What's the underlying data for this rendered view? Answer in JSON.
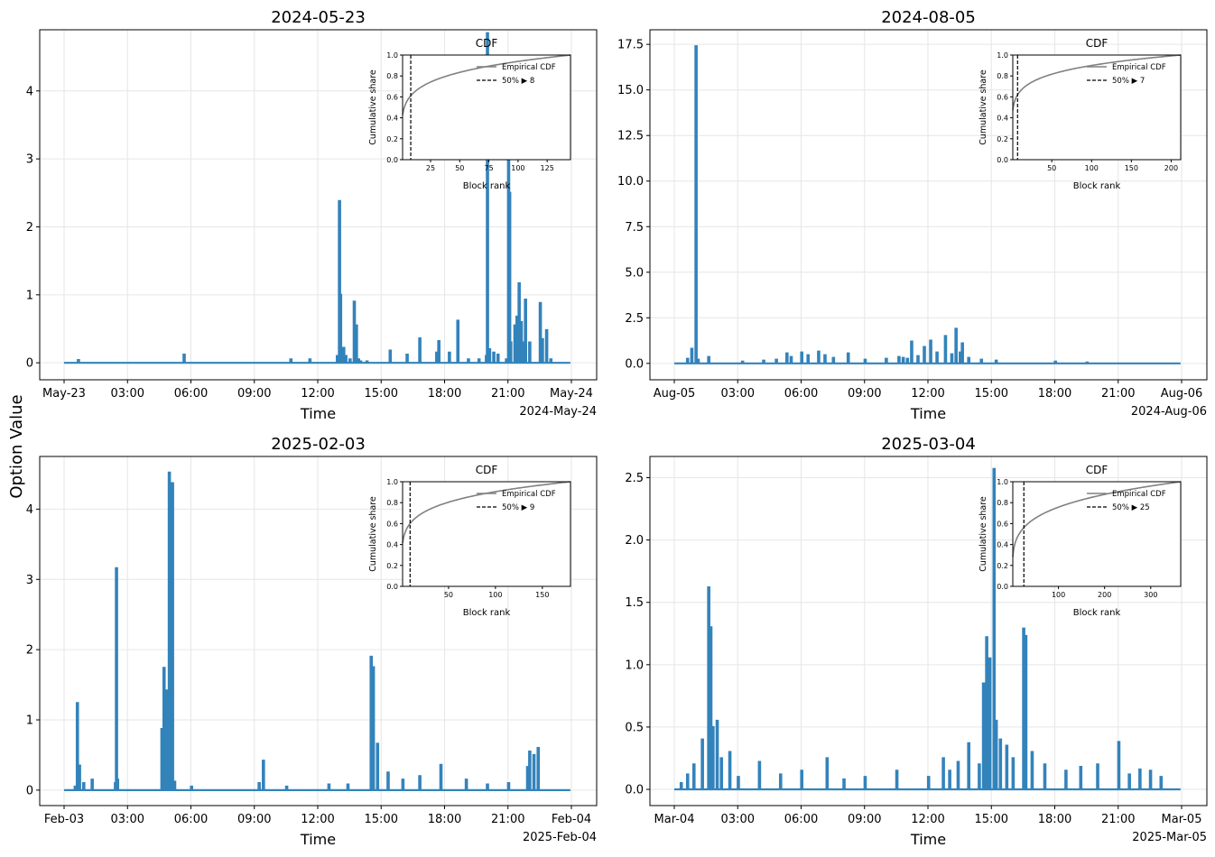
{
  "figure": {
    "ylabel": "Option Value"
  },
  "colors": {
    "series": "#3383bb",
    "cdf": "#808080",
    "grid": "#e6e6e6",
    "median": "#000000"
  },
  "chart_data": [
    {
      "type": "line",
      "title": "2024-05-23",
      "xlabel": "Time",
      "ylabel": "",
      "x_ticks": [
        "May-23",
        "03:00",
        "06:00",
        "09:00",
        "12:00",
        "15:00",
        "18:00",
        "21:00",
        "May-24"
      ],
      "x_offset_label": "2024-May-24",
      "ylim": [
        -0.25,
        4.9
      ],
      "y_ticks": [
        0,
        1,
        2,
        3,
        4
      ],
      "y_tick_labels": [
        "0",
        "1",
        "2",
        "3",
        "4"
      ],
      "grid": true,
      "series": [
        {
          "values_hours": [
            0,
            0.6,
            0.65,
            0.7,
            5.6,
            5.65,
            5.7,
            6.6,
            8.1,
            8.5,
            9.0,
            10.7,
            11.6,
            12.1,
            12.9,
            13.0,
            13.05,
            13.1,
            13.2,
            13.3,
            13.5,
            13.7,
            13.8,
            13.9,
            14.0,
            14.3,
            15.4,
            16.2,
            16.8,
            17.6,
            17.7,
            18.2,
            18.6,
            19.1,
            19.6,
            19.95,
            20.0,
            20.05,
            20.1,
            20.3,
            20.5,
            20.9,
            21.0,
            21.05,
            21.1,
            21.3,
            21.4,
            21.5,
            21.6,
            21.7,
            21.8,
            22.0,
            22.5,
            22.6,
            22.8,
            23.0,
            23.95
          ],
          "values": [
            0,
            0,
            0.04,
            0,
            0,
            0.12,
            0,
            0,
            0,
            0,
            0,
            0.05,
            0.05,
            0,
            0.1,
            2.38,
            1.0,
            0.2,
            0.22,
            0.1,
            0.05,
            0.9,
            0.55,
            0.05,
            0.02,
            0.02,
            0.18,
            0.12,
            0.36,
            0.15,
            0.32,
            0.15,
            0.62,
            0.05,
            0.05,
            0.1,
            4.85,
            0.2,
            0.2,
            0.15,
            0.12,
            0.05,
            3.2,
            2.5,
            0.3,
            0.55,
            0.68,
            1.17,
            0.6,
            0.3,
            0.93,
            0.3,
            0.88,
            0.35,
            0.48,
            0.05,
            0
          ]
        }
      ],
      "inset": {
        "title": "CDF",
        "xlabel": "Block rank",
        "ylabel": "Cumulative share",
        "xlim": [
          1,
          145
        ],
        "x_ticks": [
          25,
          50,
          75,
          100,
          125
        ],
        "y_ticks": [
          "0.0",
          "0.2",
          "0.4",
          "0.6",
          "0.8",
          "1.0"
        ],
        "n_blocks": 145,
        "cdf_exponent": 0.17,
        "median_rank": 8,
        "legend": [
          "Empirical CDF",
          "50% ▶ 8"
        ]
      }
    },
    {
      "type": "line",
      "title": "2024-08-05",
      "xlabel": "Time",
      "ylabel": "",
      "x_ticks": [
        "Aug-05",
        "03:00",
        "06:00",
        "09:00",
        "12:00",
        "15:00",
        "18:00",
        "21:00",
        "Aug-06"
      ],
      "x_offset_label": "2024-Aug-06",
      "ylim": [
        -0.9,
        18.3
      ],
      "y_ticks": [
        0,
        2.5,
        5,
        7.5,
        10,
        12.5,
        15,
        17.5
      ],
      "y_tick_labels": [
        "0.0",
        "2.5",
        "5.0",
        "7.5",
        "10.0",
        "12.5",
        "15.0",
        "17.5"
      ],
      "grid": true,
      "series": [
        {
          "values_hours": [
            0,
            0.6,
            0.8,
            1.0,
            1.05,
            1.1,
            1.6,
            3.2,
            4.2,
            4.8,
            5.3,
            5.5,
            6.0,
            6.3,
            6.8,
            7.1,
            7.5,
            8.2,
            9.0,
            10.0,
            10.6,
            10.8,
            11.0,
            11.2,
            11.5,
            11.8,
            12.1,
            12.4,
            12.8,
            13.1,
            13.3,
            13.5,
            13.6,
            13.9,
            14.5,
            15.2,
            18.0,
            19.5,
            23.95
          ],
          "values": [
            0,
            0.25,
            0.8,
            17.4,
            0.2,
            0.2,
            0.35,
            0.1,
            0.15,
            0.2,
            0.55,
            0.35,
            0.6,
            0.45,
            0.65,
            0.45,
            0.3,
            0.55,
            0.2,
            0.25,
            0.35,
            0.3,
            0.25,
            1.2,
            0.4,
            0.9,
            1.25,
            0.6,
            1.5,
            0.5,
            1.9,
            0.6,
            1.1,
            0.3,
            0.2,
            0.15,
            0.1,
            0.05,
            0
          ]
        }
      ],
      "inset": {
        "title": "CDF",
        "xlabel": "Block rank",
        "ylabel": "Cumulative share",
        "xlim": [
          1,
          212
        ],
        "x_ticks": [
          50,
          100,
          150,
          200
        ],
        "y_ticks": [
          "0.0",
          "0.2",
          "0.4",
          "0.6",
          "0.8",
          "1.0"
        ],
        "n_blocks": 212,
        "cdf_exponent": 0.14,
        "median_rank": 7,
        "legend": [
          "Empirical CDF",
          "50% ▶ 7"
        ]
      }
    },
    {
      "type": "line",
      "title": "2025-02-03",
      "xlabel": "Time",
      "ylabel": "",
      "x_ticks": [
        "Feb-03",
        "03:00",
        "06:00",
        "09:00",
        "12:00",
        "15:00",
        "18:00",
        "21:00",
        "Feb-04"
      ],
      "x_offset_label": "2025-Feb-04",
      "ylim": [
        -0.22,
        4.75
      ],
      "y_ticks": [
        0,
        1,
        2,
        3,
        4
      ],
      "y_tick_labels": [
        "0",
        "1",
        "2",
        "3",
        "4"
      ],
      "grid": true,
      "series": [
        {
          "values_hours": [
            0,
            0.5,
            0.6,
            0.7,
            0.9,
            1.3,
            2.4,
            2.45,
            2.5,
            4.6,
            4.7,
            4.85,
            4.95,
            5.0,
            5.1,
            5.2,
            6.0,
            9.2,
            9.4,
            10.5,
            12.5,
            13.4,
            14.5,
            14.6,
            14.8,
            15.3,
            16.0,
            16.8,
            17.8,
            19.0,
            20.0,
            21.0,
            21.9,
            22.0,
            22.2,
            22.4,
            23.95
          ],
          "values": [
            0,
            0.05,
            1.24,
            0.35,
            0.1,
            0.15,
            0.1,
            3.16,
            0.15,
            0.87,
            1.74,
            1.42,
            4.52,
            3.2,
            4.37,
            0.12,
            0.05,
            0.1,
            0.42,
            0.05,
            0.08,
            0.08,
            1.9,
            1.75,
            0.66,
            0.25,
            0.15,
            0.2,
            0.36,
            0.15,
            0.08,
            0.1,
            0.33,
            0.55,
            0.5,
            0.6,
            0
          ]
        }
      ],
      "inset": {
        "title": "CDF",
        "xlabel": "Block rank",
        "ylabel": "Cumulative share",
        "xlim": [
          1,
          180
        ],
        "x_ticks": [
          50,
          100,
          150
        ],
        "y_ticks": [
          "0.0",
          "0.2",
          "0.4",
          "0.6",
          "0.8",
          "1.0"
        ],
        "n_blocks": 180,
        "cdf_exponent": 0.17,
        "median_rank": 9,
        "legend": [
          "Empirical CDF",
          "50% ▶ 9"
        ]
      }
    },
    {
      "type": "line",
      "title": "2025-03-04",
      "xlabel": "Time",
      "ylabel": "",
      "x_ticks": [
        "Mar-04",
        "03:00",
        "06:00",
        "09:00",
        "12:00",
        "15:00",
        "18:00",
        "21:00",
        "Mar-05"
      ],
      "x_offset_label": "2025-Mar-05",
      "ylim": [
        -0.13,
        2.67
      ],
      "y_ticks": [
        0,
        0.5,
        1.0,
        1.5,
        2.0,
        2.5
      ],
      "y_tick_labels": [
        "0.0",
        "0.5",
        "1.0",
        "1.5",
        "2.0",
        "2.5"
      ],
      "grid": true,
      "series": [
        {
          "values_hours": [
            0,
            0.3,
            0.6,
            0.9,
            1.3,
            1.6,
            1.7,
            1.8,
            2.0,
            2.2,
            2.6,
            3.0,
            4.0,
            5.0,
            6.0,
            7.2,
            8.0,
            9.0,
            10.5,
            12.0,
            12.7,
            13.0,
            13.4,
            13.9,
            14.4,
            14.6,
            14.75,
            14.9,
            15.1,
            15.2,
            15.4,
            15.7,
            16.0,
            16.5,
            16.6,
            16.9,
            17.5,
            18.5,
            19.2,
            20.0,
            21.0,
            21.5,
            22.0,
            22.5,
            23.0,
            23.95
          ],
          "values": [
            0,
            0.05,
            0.12,
            0.2,
            0.4,
            1.62,
            1.3,
            0.5,
            0.55,
            0.25,
            0.3,
            0.1,
            0.22,
            0.12,
            0.15,
            0.25,
            0.08,
            0.1,
            0.15,
            0.1,
            0.25,
            0.15,
            0.22,
            0.37,
            0.2,
            0.85,
            1.22,
            1.05,
            2.57,
            0.55,
            0.4,
            0.35,
            0.25,
            1.29,
            1.23,
            0.3,
            0.2,
            0.15,
            0.18,
            0.2,
            0.38,
            0.12,
            0.16,
            0.15,
            0.1,
            0
          ]
        }
      ],
      "inset": {
        "title": "CDF",
        "xlabel": "Block rank",
        "ylabel": "Cumulative share",
        "xlim": [
          1,
          365
        ],
        "x_ticks": [
          100,
          200,
          300
        ],
        "y_ticks": [
          "0.0",
          "0.2",
          "0.4",
          "0.6",
          "0.8",
          "1.0"
        ],
        "n_blocks": 365,
        "cdf_exponent": 0.215,
        "median_rank": 25,
        "legend": [
          "Empirical CDF",
          "50% ▶ 25"
        ]
      }
    }
  ]
}
